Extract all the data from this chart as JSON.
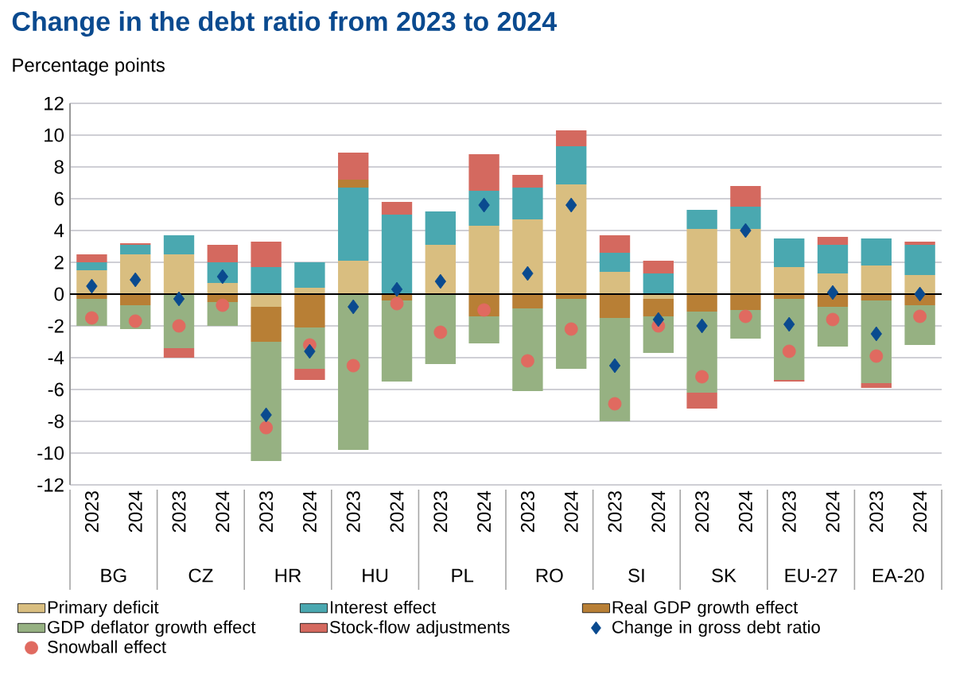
{
  "chart_data": {
    "type": "bar",
    "stacked": true,
    "title": "Change in the debt ratio from 2023 to 2024",
    "ylabel": "Percentage points",
    "categories": [
      "2023",
      "2024",
      "2023",
      "2024",
      "2023",
      "2024",
      "2023",
      "2024",
      "2023",
      "2024",
      "2023",
      "2024",
      "2023",
      "2024",
      "2023",
      "2024",
      "2023",
      "2024",
      "2023",
      "2024"
    ],
    "annotations": [
      "BG",
      "CZ",
      "HR",
      "HU",
      "PL",
      "RO",
      "SI",
      "SK",
      "EU-27",
      "EA-20"
    ],
    "ylim": [
      -12,
      12
    ],
    "yticks": [
      -12,
      -10,
      -8,
      -6,
      -4,
      -2,
      0,
      2,
      4,
      6,
      8,
      10,
      12
    ],
    "grid": "y",
    "legend": "bottom",
    "series": [
      {
        "name": "Primary deficit",
        "color": "#d9be80",
        "values": [
          1.5,
          2.5,
          2.5,
          0.7,
          -0.8,
          0.4,
          2.1,
          null,
          3.1,
          4.3,
          4.7,
          6.9,
          1.4,
          -0.3,
          4.1,
          4.1,
          1.7,
          1.3,
          1.8,
          1.2
        ]
      },
      {
        "name": "Interest effect",
        "color": "#4aa8b0",
        "values": [
          0.5,
          0.6,
          1.2,
          1.3,
          1.7,
          1.6,
          4.6,
          5.0,
          2.1,
          2.2,
          2.0,
          2.4,
          1.2,
          1.3,
          1.2,
          1.4,
          1.8,
          1.8,
          1.7,
          1.9
        ]
      },
      {
        "name": "Real GDP growth effect",
        "color": "#b87f35",
        "values": [
          -0.3,
          -0.7,
          null,
          -0.5,
          -2.2,
          -2.1,
          0.5,
          -0.4,
          null,
          -1.4,
          -0.9,
          -0.3,
          -1.5,
          -1.1,
          -1.1,
          -1.0,
          -0.3,
          -0.8,
          -0.4,
          -0.7
        ]
      },
      {
        "name": "GDP deflator growth effect",
        "color": "#96b182",
        "values": [
          -1.7,
          -1.5,
          -3.4,
          -1.5,
          -7.5,
          -2.6,
          -9.8,
          -5.1,
          -4.4,
          -1.7,
          -5.2,
          -4.4,
          -6.5,
          -2.3,
          -5.1,
          -1.8,
          -5.1,
          -2.5,
          -5.2,
          -2.5
        ]
      },
      {
        "name": "Stock-flow adjustments",
        "color": "#d4695f",
        "values": [
          0.5,
          0.1,
          -0.6,
          1.1,
          1.6,
          -0.7,
          1.7,
          0.8,
          null,
          2.3,
          0.8,
          1.0,
          1.1,
          0.8,
          -1.0,
          1.3,
          -0.1,
          0.5,
          -0.3,
          0.2
        ]
      },
      {
        "name": "Change in gross debt ratio",
        "type": "scatter",
        "marker": "diamond",
        "color": "#0a4a8f",
        "values": [
          0.5,
          0.9,
          -0.3,
          1.1,
          -7.6,
          -3.6,
          -0.8,
          0.3,
          0.8,
          5.6,
          1.3,
          5.6,
          -4.5,
          -1.6,
          -2.0,
          4.0,
          -1.9,
          0.1,
          -2.5,
          0.0
        ]
      },
      {
        "name": "Snowball effect",
        "type": "scatter",
        "marker": "circle",
        "color": "#e06a60",
        "values": [
          -1.5,
          -1.7,
          -2.0,
          -0.7,
          -8.4,
          -3.2,
          -4.5,
          -0.6,
          -2.4,
          -1.0,
          -4.2,
          -2.2,
          -6.9,
          -2.0,
          -5.2,
          -1.4,
          -3.6,
          -1.6,
          -3.9,
          -1.4
        ]
      }
    ]
  }
}
